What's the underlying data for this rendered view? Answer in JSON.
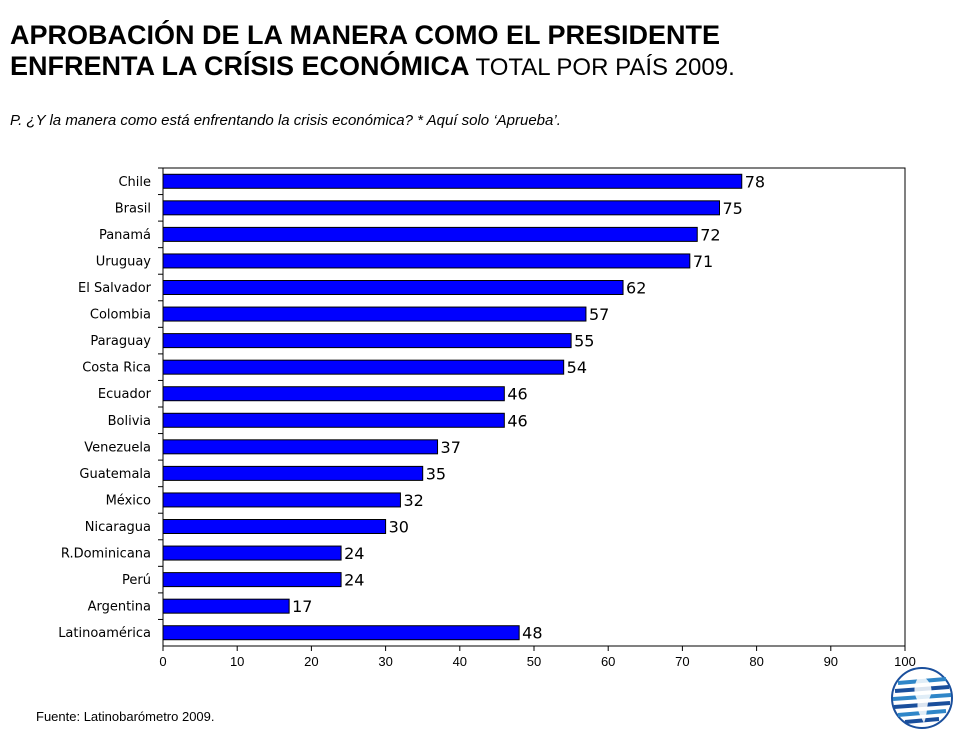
{
  "title": {
    "line1": "APROBACIÓN  DE LA MANERA COMO EL PRESIDENTE",
    "line2": "ENFRENTA LA CRÍSIS ECONÓMICA",
    "subtitle": "TOTAL POR PAÍS 2009."
  },
  "question": "P. ¿Y la manera como está enfrentando la crisis económica? * Aquí solo ‘Aprueba’.",
  "source": "Fuente: Latinobarómetro 2009.",
  "colors": {
    "bar": "#0000ff",
    "bar_stroke": "#000000",
    "axis": "#000000"
  },
  "logo": {
    "icon": "latinobarometro-globe-logo",
    "colors": [
      "#1a4f9c",
      "#2f86c8",
      "#6ab4e0"
    ]
  },
  "chart_data": {
    "type": "bar",
    "orientation": "horizontal",
    "categories": [
      "Chile",
      "Brasil",
      "Panamá",
      "Uruguay",
      "El Salvador",
      "Colombia",
      "Paraguay",
      "Costa Rica",
      "Ecuador",
      "Bolivia",
      "Venezuela",
      "Guatemala",
      "México",
      "Nicaragua",
      "R.Dominicana",
      "Perú",
      "Argentina",
      "Latinoamérica"
    ],
    "values": [
      78,
      75,
      72,
      71,
      62,
      57,
      55,
      54,
      46,
      46,
      37,
      35,
      32,
      30,
      24,
      24,
      17,
      48
    ],
    "xlim": [
      0,
      100
    ],
    "xticks": [
      0,
      10,
      20,
      30,
      40,
      50,
      60,
      70,
      80,
      90,
      100
    ],
    "grid": false,
    "legend": false
  }
}
